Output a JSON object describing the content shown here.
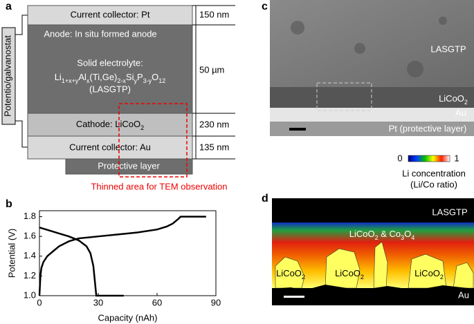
{
  "panel_labels": [
    "a",
    "b",
    "c",
    "d"
  ],
  "diagram": {
    "side_label": "Potentio/galvanostat",
    "pt": "Current collector: Pt",
    "anode": "Anode: In situ formed anode",
    "electrolyte": "Solid electrolyte:",
    "formula": [
      "Li",
      "1+x+y",
      "Al",
      "x",
      "(Ti,Ge)",
      "2-x",
      "Si",
      "y",
      "P",
      "3-y",
      "O",
      "12"
    ],
    "lasgtp": "(LASGTP)",
    "cathode": [
      "Cathode: LiCoO",
      "2"
    ],
    "au": "Current collector: Au",
    "protective": "Protective layer",
    "thicknesses": [
      "150 nm",
      "50 µm",
      "230 nm",
      "135 nm"
    ],
    "tem_note": "Thinned area for TEM observation"
  },
  "chart_data": {
    "type": "line",
    "x_label": "Capacity (nAh)",
    "y_label": "Potential (V)",
    "xlim": [
      0,
      90
    ],
    "ylim": [
      1.0,
      1.86
    ],
    "xticks": [
      0,
      30,
      60,
      90
    ],
    "yticks": [
      {
        "value": 1.0,
        "label": "1.0"
      },
      1.2,
      1.4,
      1.6,
      1.8
    ],
    "series": [
      {
        "color": "#000000",
        "x": [
          0,
          0.5,
          1,
          2,
          4,
          7,
          10,
          15,
          20,
          30,
          40,
          50,
          60,
          65,
          68,
          71,
          72,
          85
        ],
        "values": [
          1.0,
          1.2,
          1.28,
          1.34,
          1.4,
          1.45,
          1.5,
          1.55,
          1.58,
          1.6,
          1.62,
          1.64,
          1.67,
          1.7,
          1.73,
          1.78,
          1.8,
          1.8
        ]
      },
      {
        "color": "#000000",
        "x": [
          0,
          5,
          10,
          15,
          20,
          24,
          26,
          27.5,
          28.5,
          29,
          43
        ],
        "values": [
          1.69,
          1.66,
          1.63,
          1.6,
          1.56,
          1.5,
          1.43,
          1.3,
          1.1,
          1.0,
          1.0
        ]
      }
    ]
  },
  "tem": {
    "lasgtp": "LASGTP",
    "licoo2": [
      "LiCoO",
      "2"
    ],
    "au": "Au",
    "pt": "Pt (protective layer)"
  },
  "colorbar": {
    "ticks": [
      0,
      1
    ],
    "title": "Li concentration",
    "subtitle": "(Li/Co ratio)"
  },
  "map": {
    "lasgtp": "LASGTP",
    "mixed": [
      "LiCoO",
      "2",
      " & Co",
      "3",
      "O",
      "4"
    ],
    "licoo2": [
      [
        "LiCoO",
        "2"
      ],
      [
        "LiCoO",
        "2"
      ],
      [
        "LiCoO",
        "2"
      ]
    ],
    "au": "Au"
  }
}
